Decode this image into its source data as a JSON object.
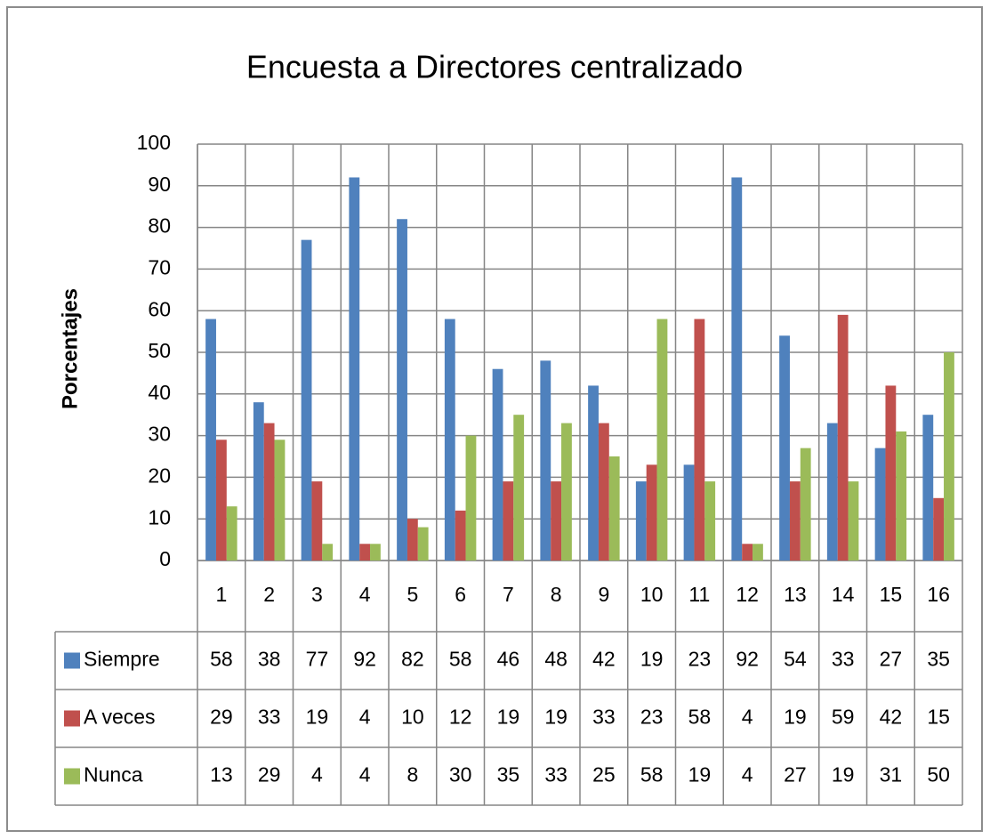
{
  "chart_data": {
    "type": "bar",
    "title": "Encuesta a Directores centralizado",
    "y_label": "Porcentajes",
    "categories": [
      "1",
      "2",
      "3",
      "4",
      "5",
      "6",
      "7",
      "8",
      "9",
      "10",
      "11",
      "12",
      "13",
      "14",
      "15",
      "16"
    ],
    "series": [
      {
        "name": "Siempre",
        "color": "#4f81bd",
        "values": [
          58,
          38,
          77,
          92,
          82,
          58,
          46,
          48,
          42,
          19,
          23,
          92,
          54,
          33,
          27,
          35
        ]
      },
      {
        "name": "A veces",
        "color": "#c0504d",
        "values": [
          29,
          33,
          19,
          4,
          10,
          12,
          19,
          19,
          33,
          23,
          58,
          4,
          19,
          59,
          42,
          15
        ]
      },
      {
        "name": "Nunca",
        "color": "#9bbb59",
        "values": [
          13,
          29,
          4,
          4,
          8,
          30,
          35,
          33,
          25,
          58,
          19,
          4,
          27,
          19,
          31,
          50
        ]
      }
    ],
    "ylim": [
      0,
      100
    ],
    "yticks": [
      0,
      10,
      20,
      30,
      40,
      50,
      60,
      70,
      80,
      90,
      100
    ],
    "grid": true,
    "data_table": true
  }
}
